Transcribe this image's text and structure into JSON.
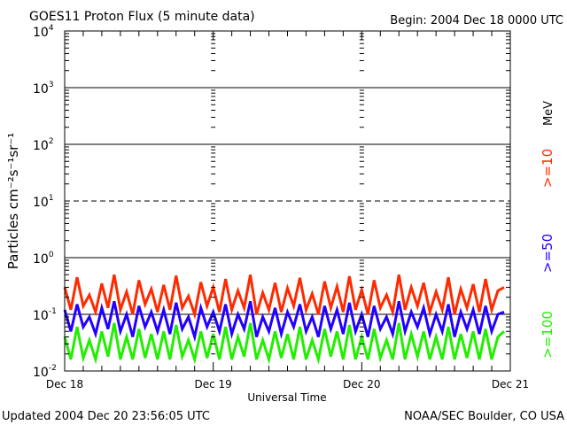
{
  "chart_data": {
    "type": "line",
    "title": "GOES11 Proton Flux (5 minute data)",
    "begin_label": "Begin: 2004 Dec 18 0000 UTC",
    "xlabel": "Universal Time",
    "ylabel": "Particles cm⁻²s⁻¹sr⁻¹",
    "yscale": "log",
    "ylim": [
      0.01,
      10000
    ],
    "y_ticks": [
      {
        "value": 10000,
        "base": "10",
        "exp": "4"
      },
      {
        "value": 1000,
        "base": "10",
        "exp": "3"
      },
      {
        "value": 100,
        "base": "10",
        "exp": "2"
      },
      {
        "value": 10,
        "base": "10",
        "exp": "1"
      },
      {
        "value": 1,
        "base": "10",
        "exp": "0"
      },
      {
        "value": 0.1,
        "base": "10",
        "exp": "-1"
      },
      {
        "value": 0.01,
        "base": "10",
        "exp": "-2"
      }
    ],
    "xlim_days": [
      0,
      3
    ],
    "x_ticks": [
      {
        "day": 0,
        "label": "Dec 18"
      },
      {
        "day": 1,
        "label": "Dec 19"
      },
      {
        "day": 2,
        "label": "Dec 20"
      },
      {
        "day": 3,
        "label": "Dec 21"
      }
    ],
    "grid": {
      "solid": [
        1000,
        100,
        1,
        0.1
      ],
      "dashed": [
        10
      ]
    },
    "legend_placement": "right",
    "legend_unit": "MeV",
    "x_step_hours": 1,
    "series": [
      {
        "name": ">=10",
        "color": "#ff2a00",
        "values": [
          0.3,
          0.12,
          0.45,
          0.14,
          0.22,
          0.11,
          0.35,
          0.13,
          0.5,
          0.12,
          0.25,
          0.1,
          0.4,
          0.15,
          0.28,
          0.11,
          0.33,
          0.12,
          0.48,
          0.13,
          0.21,
          0.1,
          0.37,
          0.14,
          0.3,
          0.11,
          0.42,
          0.12,
          0.26,
          0.13,
          0.5,
          0.1,
          0.24,
          0.12,
          0.36,
          0.11,
          0.29,
          0.14,
          0.44,
          0.12,
          0.23,
          0.1,
          0.38,
          0.13,
          0.31,
          0.11,
          0.47,
          0.12,
          0.27,
          0.1,
          0.4,
          0.13,
          0.22,
          0.11,
          0.5,
          0.12,
          0.3,
          0.14,
          0.36,
          0.11,
          0.25,
          0.12,
          0.45,
          0.1,
          0.28,
          0.13,
          0.34,
          0.11,
          0.42,
          0.12,
          0.26,
          0.3
        ]
      },
      {
        "name": ">=50",
        "color": "#2200ff",
        "values": [
          0.12,
          0.05,
          0.15,
          0.06,
          0.09,
          0.045,
          0.13,
          0.055,
          0.17,
          0.05,
          0.1,
          0.04,
          0.14,
          0.06,
          0.11,
          0.05,
          0.12,
          0.045,
          0.16,
          0.055,
          0.09,
          0.04,
          0.13,
          0.06,
          0.11,
          0.05,
          0.15,
          0.045,
          0.1,
          0.055,
          0.17,
          0.04,
          0.09,
          0.05,
          0.13,
          0.045,
          0.11,
          0.06,
          0.15,
          0.05,
          0.09,
          0.04,
          0.14,
          0.055,
          0.12,
          0.045,
          0.16,
          0.05,
          0.1,
          0.04,
          0.14,
          0.055,
          0.09,
          0.045,
          0.17,
          0.05,
          0.11,
          0.06,
          0.13,
          0.045,
          0.1,
          0.05,
          0.15,
          0.04,
          0.11,
          0.055,
          0.12,
          0.045,
          0.14,
          0.05,
          0.1,
          0.11
        ]
      },
      {
        "name": ">=100",
        "color": "#22ee00",
        "values": [
          0.04,
          0.016,
          0.06,
          0.017,
          0.035,
          0.016,
          0.05,
          0.018,
          0.07,
          0.016,
          0.04,
          0.016,
          0.055,
          0.017,
          0.045,
          0.016,
          0.05,
          0.016,
          0.065,
          0.018,
          0.035,
          0.016,
          0.05,
          0.017,
          0.045,
          0.016,
          0.06,
          0.016,
          0.04,
          0.018,
          0.07,
          0.016,
          0.035,
          0.016,
          0.05,
          0.017,
          0.045,
          0.016,
          0.06,
          0.016,
          0.035,
          0.016,
          0.055,
          0.018,
          0.05,
          0.016,
          0.065,
          0.016,
          0.04,
          0.016,
          0.055,
          0.017,
          0.035,
          0.016,
          0.07,
          0.016,
          0.045,
          0.018,
          0.05,
          0.016,
          0.04,
          0.016,
          0.06,
          0.016,
          0.045,
          0.017,
          0.05,
          0.016,
          0.055,
          0.016,
          0.04,
          0.05
        ]
      }
    ]
  },
  "footer": {
    "updated": "Updated 2004 Dec 20 23:56:05 UTC",
    "credit": "NOAA/SEC Boulder, CO USA"
  }
}
